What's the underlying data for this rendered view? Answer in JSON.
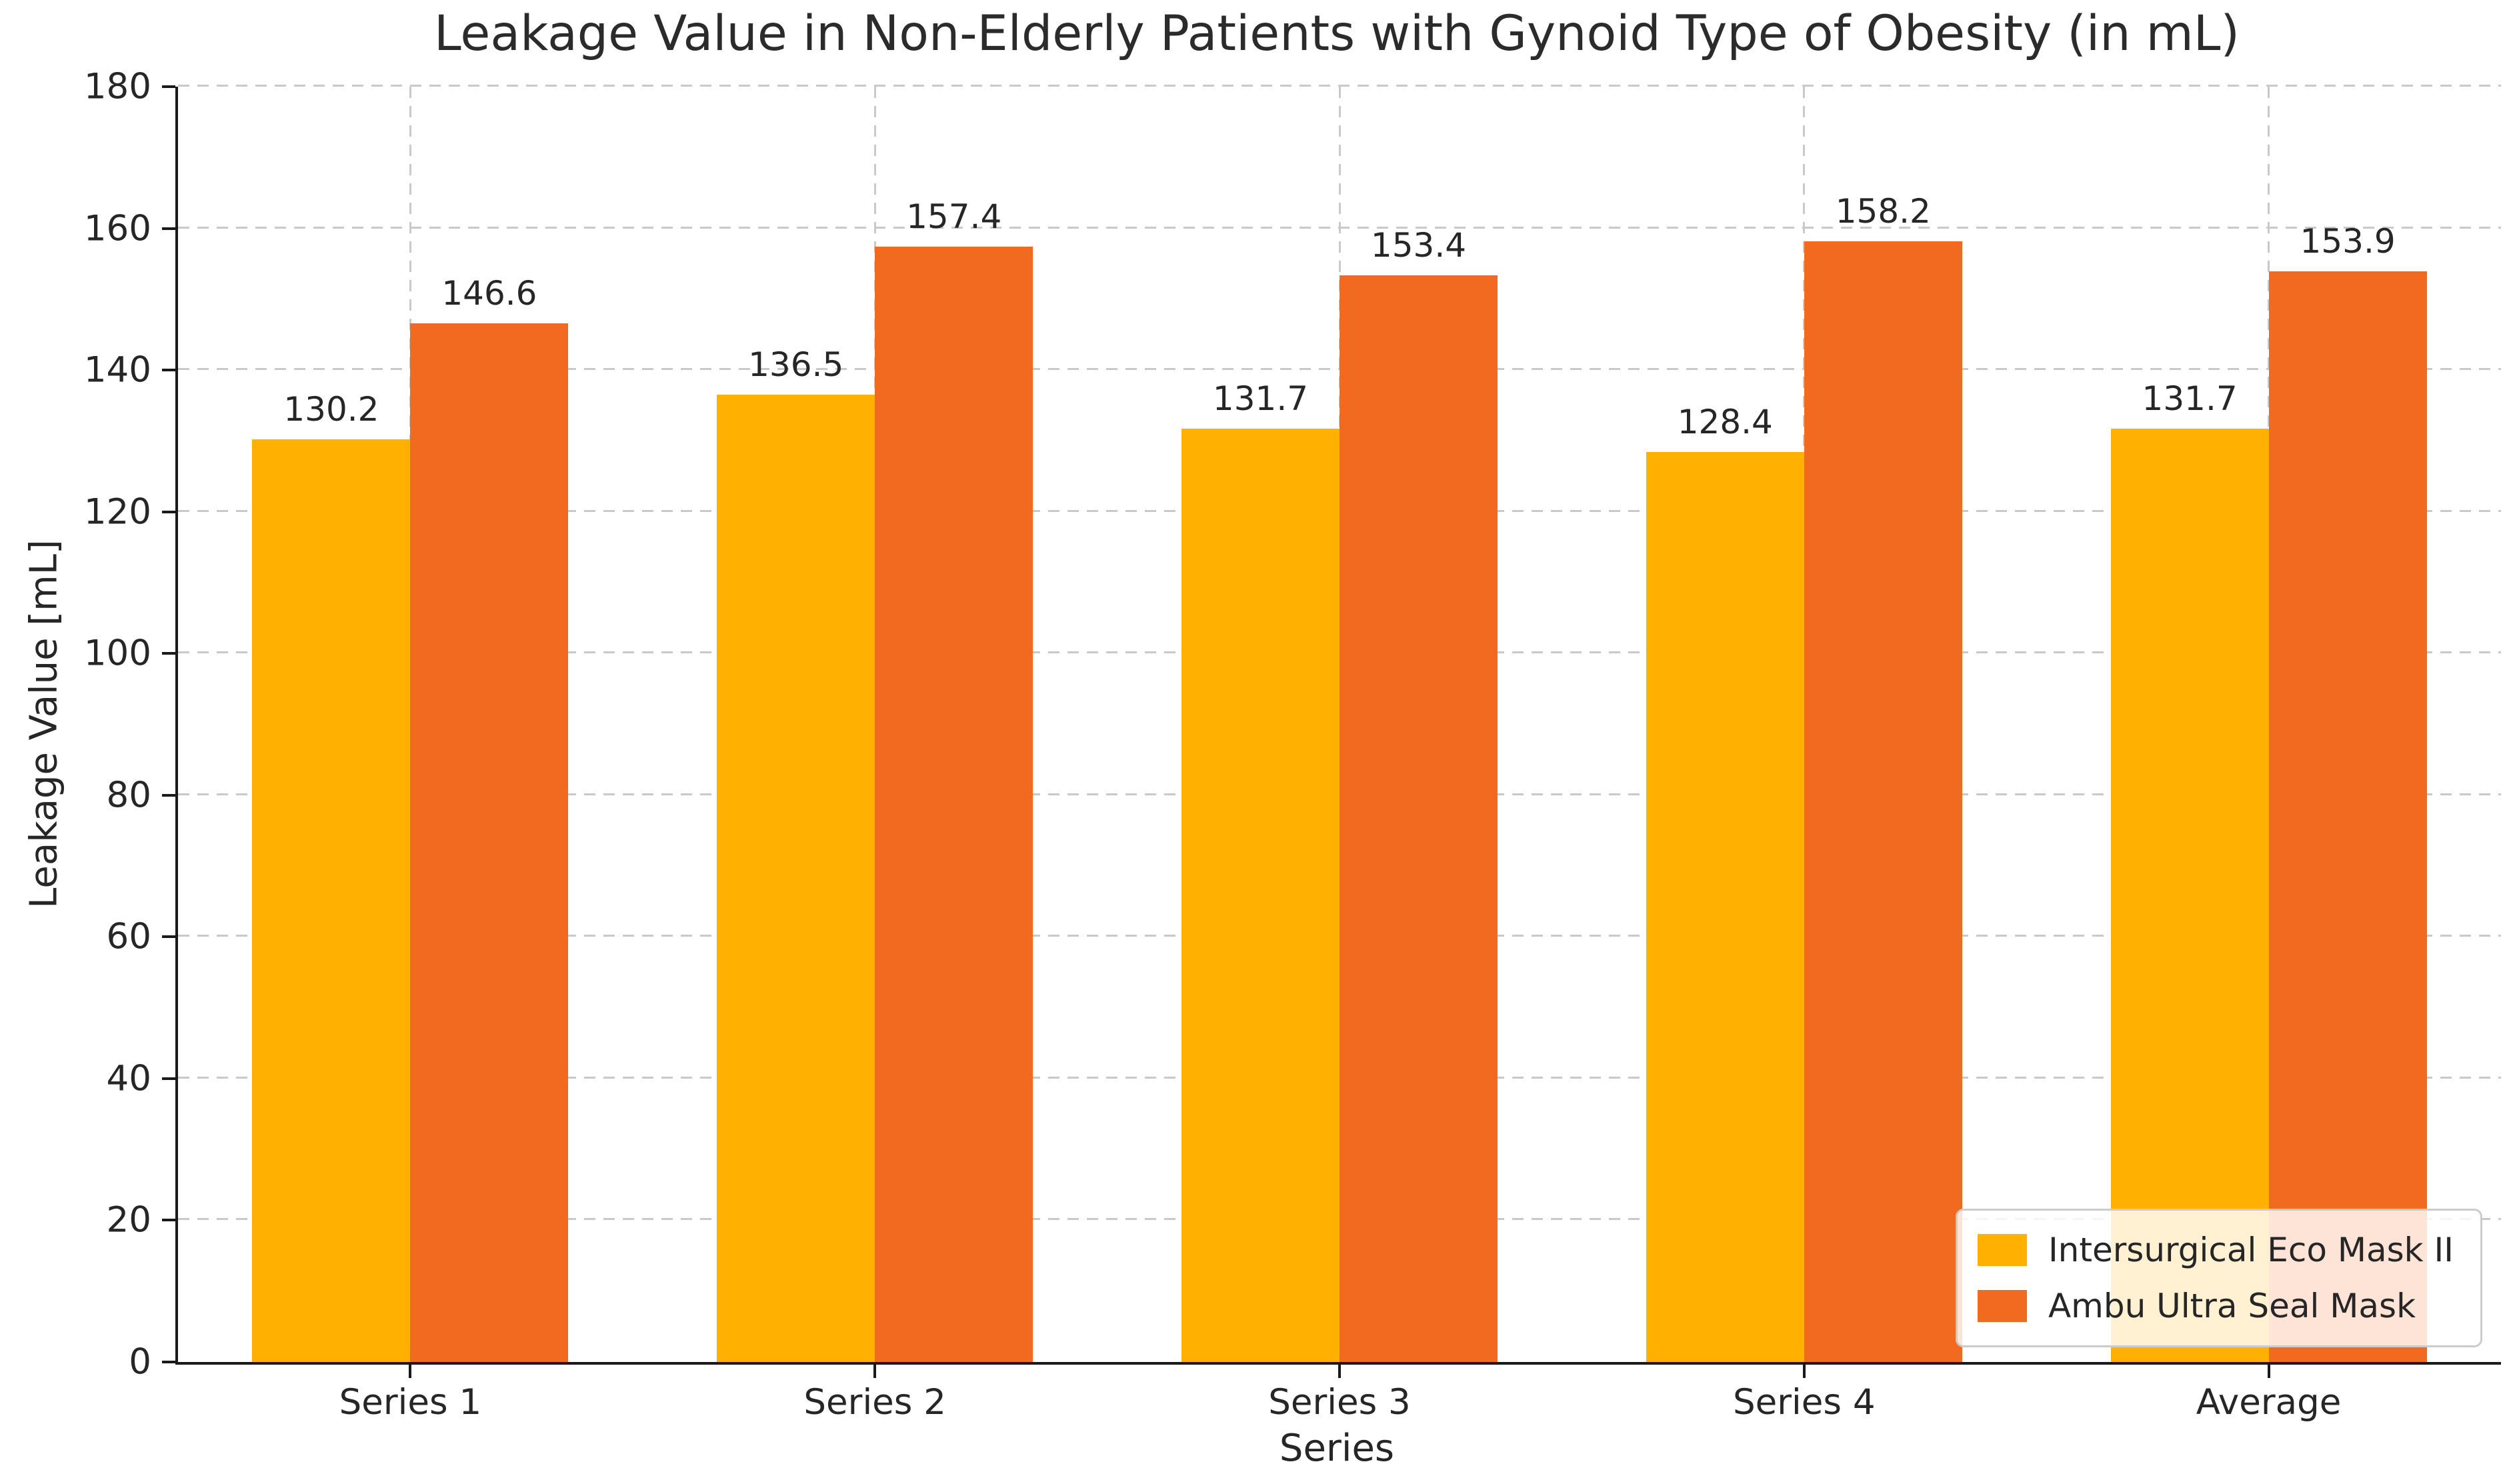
{
  "chart_data": {
    "type": "bar",
    "title": "Leakage Value in Non-Elderly Patients with Gynoid Type of Obesity (in mL)",
    "xlabel": "Series",
    "ylabel": "Leakage Value [mL]",
    "categories": [
      "Series 1",
      "Series 2",
      "Series 3",
      "Series 4",
      "Average"
    ],
    "series": [
      {
        "name": "Intersurgical Eco Mask II",
        "color": "#FFB000",
        "values": [
          130.2,
          136.5,
          131.7,
          128.4,
          131.7
        ]
      },
      {
        "name": "Ambu Ultra Seal Mask",
        "color": "#F26A1F",
        "values": [
          146.6,
          157.4,
          153.4,
          158.2,
          153.9
        ]
      }
    ],
    "ylim": [
      0,
      180
    ],
    "ytick_step": 20,
    "yticks": [
      0,
      20,
      40,
      60,
      80,
      100,
      120,
      140,
      160,
      180
    ],
    "grid": "dashed",
    "grid_color": "#c9c9c9",
    "legend_position": "lower right",
    "value_labels_shown": true,
    "axis_color": "#1a1a1a",
    "text_color": "#262626"
  }
}
